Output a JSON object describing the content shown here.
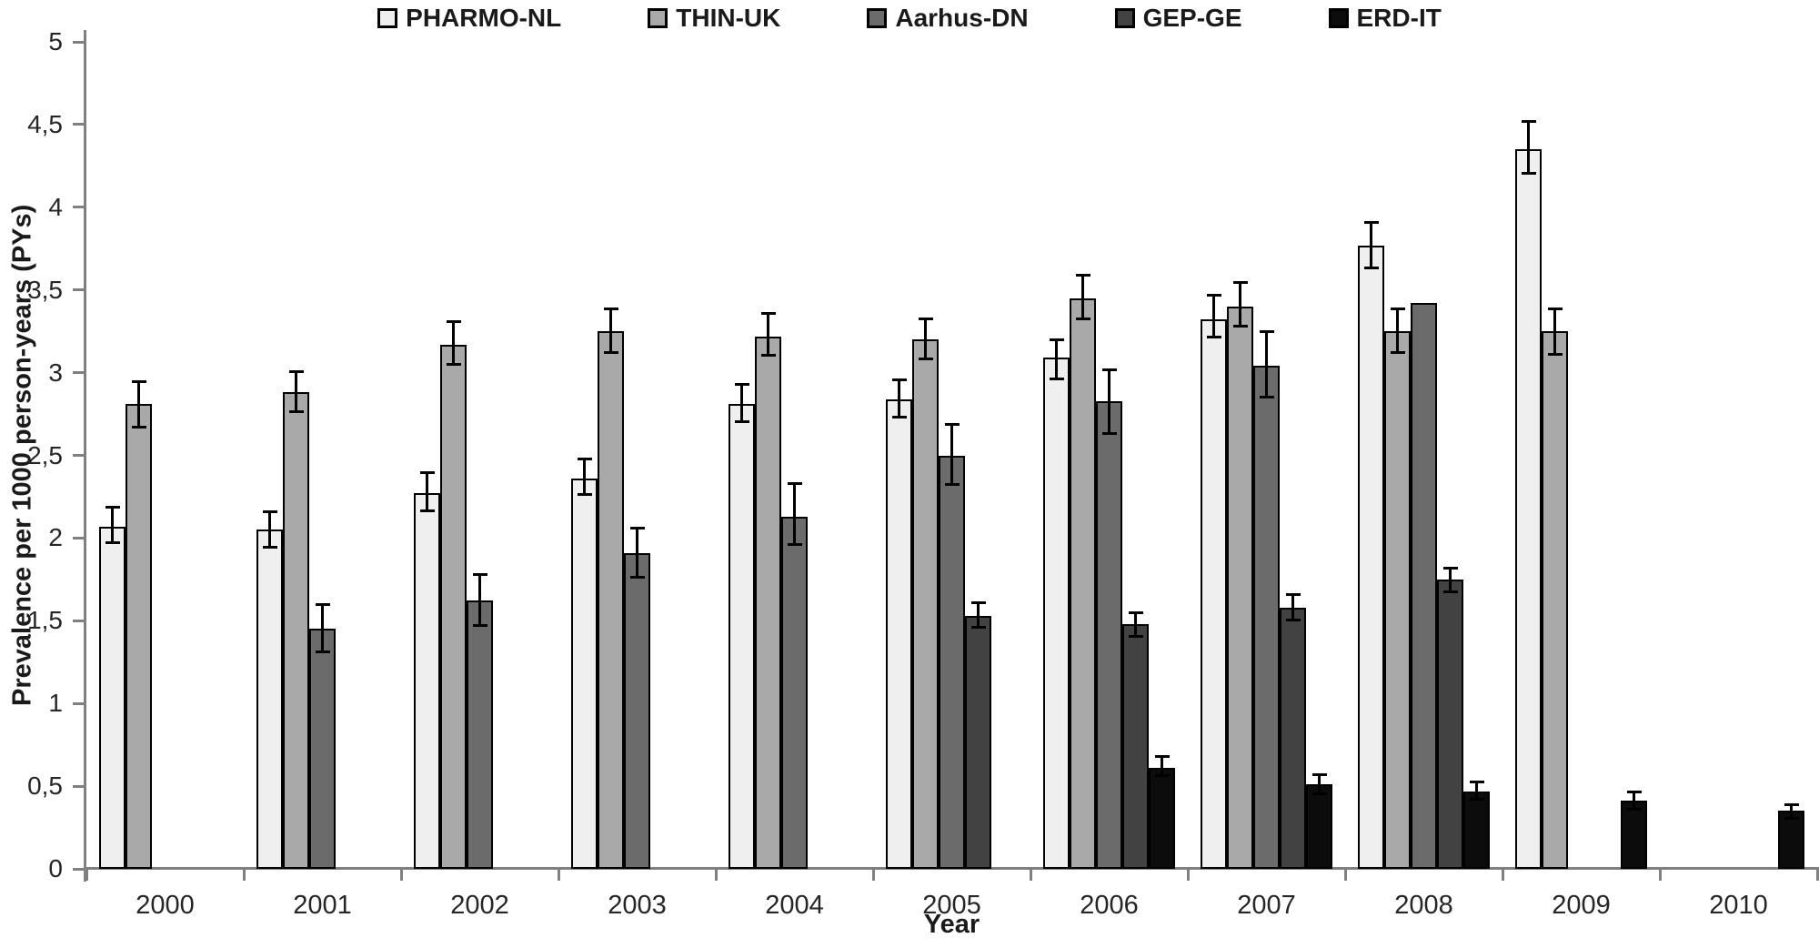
{
  "chart_data": {
    "type": "bar",
    "title": "",
    "xlabel": "Year",
    "ylabel": "Prevalence per 1000 person-years (PYs)",
    "ylim": [
      0,
      5
    ],
    "ytick_step": 0.5,
    "decimal_separator": ",",
    "grid": false,
    "legend_position": "top",
    "error_bars": true,
    "axis_color": "#808080",
    "text_color": "#262626",
    "bar_border_color": "#000000",
    "categories": [
      "2000",
      "2001",
      "2002",
      "2003",
      "2004",
      "2005",
      "2006",
      "2007",
      "2008",
      "2009",
      "2010"
    ],
    "series": [
      {
        "name": "PHARMO-NL",
        "color": "#efefef",
        "values": [
          2.07,
          2.05,
          2.27,
          2.36,
          2.81,
          2.84,
          3.09,
          3.32,
          3.77,
          4.35,
          null
        ],
        "ci_low": [
          1.97,
          1.94,
          2.16,
          2.26,
          2.7,
          2.73,
          2.96,
          3.21,
          3.63,
          4.2,
          null
        ],
        "ci_high": [
          2.19,
          2.16,
          2.4,
          2.48,
          2.93,
          2.96,
          3.2,
          3.47,
          3.91,
          4.52,
          null
        ]
      },
      {
        "name": "THIN-UK",
        "color": "#a9a9a9",
        "values": [
          2.81,
          2.88,
          3.17,
          3.25,
          3.22,
          3.2,
          3.45,
          3.4,
          3.25,
          3.25,
          null
        ],
        "ci_low": [
          2.67,
          2.76,
          3.05,
          3.12,
          3.1,
          3.08,
          3.32,
          3.28,
          3.12,
          3.11,
          null
        ],
        "ci_high": [
          2.95,
          3.01,
          3.31,
          3.39,
          3.36,
          3.33,
          3.59,
          3.55,
          3.39,
          3.39,
          null
        ]
      },
      {
        "name": "Aarhus-DN",
        "color": "#6b6b6b",
        "values": [
          null,
          1.45,
          1.62,
          1.91,
          2.13,
          2.5,
          2.83,
          3.04,
          3.42,
          null,
          null
        ],
        "ci_low": [
          null,
          1.31,
          1.47,
          1.76,
          1.96,
          2.32,
          2.63,
          2.85,
          null,
          null,
          null
        ],
        "ci_high": [
          null,
          1.6,
          1.78,
          2.06,
          2.33,
          2.69,
          3.02,
          3.25,
          null,
          null,
          null
        ]
      },
      {
        "name": "GEP-GE",
        "color": "#424242",
        "values": [
          null,
          null,
          null,
          null,
          null,
          1.53,
          1.48,
          1.58,
          1.75,
          null,
          null
        ],
        "ci_low": [
          null,
          null,
          null,
          null,
          null,
          1.46,
          1.4,
          1.5,
          1.67,
          null,
          null
        ],
        "ci_high": [
          null,
          null,
          null,
          null,
          null,
          1.61,
          1.55,
          1.66,
          1.82,
          null,
          null
        ]
      },
      {
        "name": "ERD-IT",
        "color": "#0c0c0c",
        "values": [
          null,
          null,
          null,
          null,
          null,
          null,
          0.61,
          0.51,
          0.47,
          0.41,
          0.35
        ],
        "ci_low": [
          null,
          null,
          null,
          null,
          null,
          null,
          0.56,
          0.45,
          0.42,
          0.36,
          0.3
        ],
        "ci_high": [
          null,
          null,
          null,
          null,
          null,
          null,
          0.68,
          0.57,
          0.53,
          0.47,
          0.39
        ]
      }
    ]
  }
}
